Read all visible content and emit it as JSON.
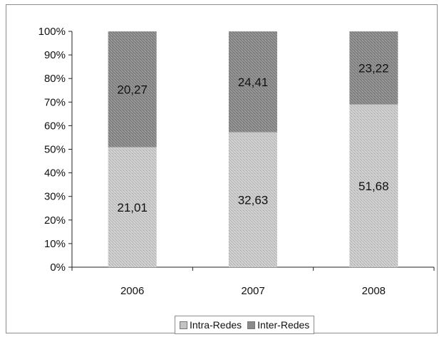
{
  "chart_data": {
    "type": "bar",
    "stacked": true,
    "percent_stacked": true,
    "categories": [
      "2006",
      "2007",
      "2008"
    ],
    "series": [
      {
        "name": "Intra-Redes",
        "values": [
          21.01,
          32.63,
          51.68
        ],
        "color": "#c4c4c4"
      },
      {
        "name": "Inter-Redes",
        "values": [
          20.27,
          24.41,
          23.22
        ],
        "color": "#8a8a8a"
      }
    ],
    "data_labels": {
      "Intra-Redes": [
        "21,01",
        "32,63",
        "51,68"
      ],
      "Inter-Redes": [
        "20,27",
        "24,41",
        "23,22"
      ]
    },
    "yticks": [
      "0%",
      "10%",
      "20%",
      "30%",
      "40%",
      "50%",
      "60%",
      "70%",
      "80%",
      "90%",
      "100%"
    ],
    "ylim": [
      0,
      100
    ],
    "grid": false,
    "legend_position": "bottom"
  }
}
